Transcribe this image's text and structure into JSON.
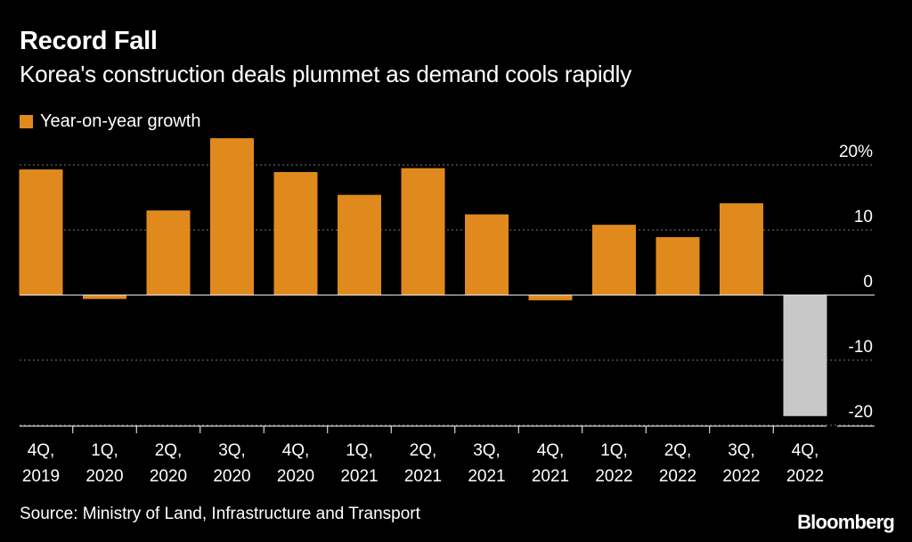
{
  "title": "Record Fall",
  "subtitle": "Korea's construction deals plummet as demand cools rapidly",
  "legend": {
    "label": "Year-on-year growth"
  },
  "source": "Source: Ministry of Land, Infrastructure and Transport",
  "brand": "Bloomberg",
  "colors": {
    "background": "#000000",
    "bar": "#e08a1e",
    "highlight_bar": "#c8c8c8",
    "text": "#ffffff",
    "grid": "#777777"
  },
  "chart_data": {
    "type": "bar",
    "title": "Record Fall",
    "subtitle": "Korea's construction deals plummet as demand cools rapidly",
    "xlabel": "",
    "ylabel": "",
    "categories": [
      [
        "4Q,",
        "2019"
      ],
      [
        "1Q,",
        "2020"
      ],
      [
        "2Q,",
        "2020"
      ],
      [
        "3Q,",
        "2020"
      ],
      [
        "4Q,",
        "2020"
      ],
      [
        "1Q,",
        "2021"
      ],
      [
        "2Q,",
        "2021"
      ],
      [
        "3Q,",
        "2021"
      ],
      [
        "4Q,",
        "2021"
      ],
      [
        "1Q,",
        "2022"
      ],
      [
        "2Q,",
        "2022"
      ],
      [
        "3Q,",
        "2022"
      ],
      [
        "4Q,",
        "2022"
      ]
    ],
    "series": [
      {
        "name": "Year-on-year growth",
        "values": [
          19.3,
          -0.6,
          13.0,
          24.1,
          18.9,
          15.4,
          19.5,
          12.4,
          -0.8,
          10.8,
          8.9,
          14.1,
          -18.6
        ]
      }
    ],
    "highlight_index": 12,
    "y_ticks": [
      {
        "value": 20,
        "label": "20%"
      },
      {
        "value": 10,
        "label": "10"
      },
      {
        "value": 0,
        "label": "0"
      },
      {
        "value": -10,
        "label": "-10"
      },
      {
        "value": -20,
        "label": "-20"
      }
    ],
    "ylim": [
      -20,
      24.1
    ],
    "grid": true,
    "axis_side": "right",
    "legend_position": "top-left"
  }
}
